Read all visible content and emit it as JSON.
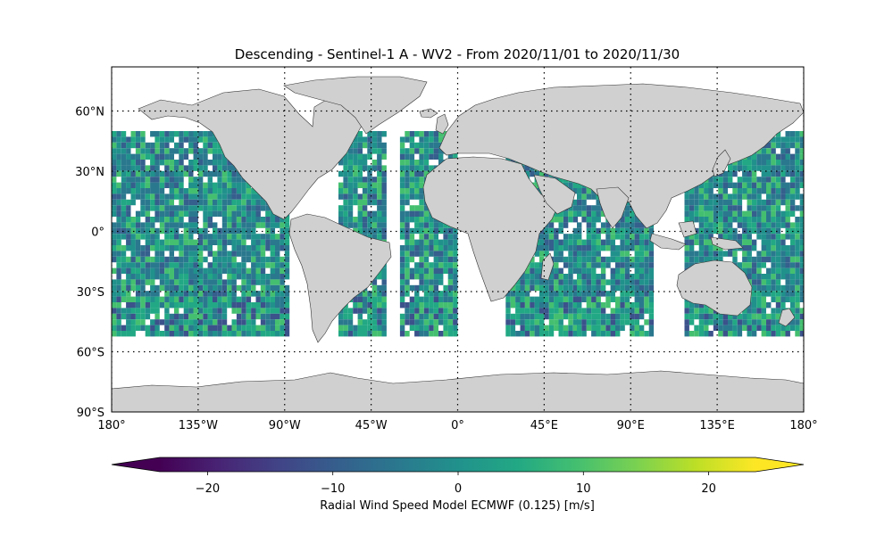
{
  "map": {
    "title": "Descending - Sentinel-1 A - WV2 - From 2020/11/01 to 2020/11/30",
    "projection": "PlateCarree",
    "lon_range": [
      -180,
      180
    ],
    "lat_range": [
      -90,
      90
    ],
    "lat_labels": [
      "60°N",
      "30°N",
      "0°",
      "30°S",
      "60°S",
      "90°S"
    ],
    "lat_values": [
      60,
      30,
      0,
      -30,
      -60,
      -90
    ],
    "lon_labels": [
      "180°",
      "135°W",
      "90°W",
      "45°W",
      "0°",
      "45°E",
      "90°E",
      "135°E",
      "180°"
    ],
    "lon_values": [
      -180,
      -135,
      -90,
      -45,
      0,
      45,
      90,
      135,
      180
    ],
    "gridlines": "dotted",
    "land_color": "#d0d0d0",
    "ocean_color": "#ffffff",
    "data_lat_extent": [
      -50,
      50
    ]
  },
  "colorbar": {
    "label": "Radial Wind Speed Model ECMWF (0.125) [m/s]",
    "ticks": [
      "−20",
      "−10",
      "0",
      "10",
      "20"
    ],
    "tick_values": [
      -20,
      -10,
      0,
      10,
      20
    ],
    "range": [
      -27.5,
      27.5
    ],
    "extend": "both",
    "colormap": "viridis"
  }
}
